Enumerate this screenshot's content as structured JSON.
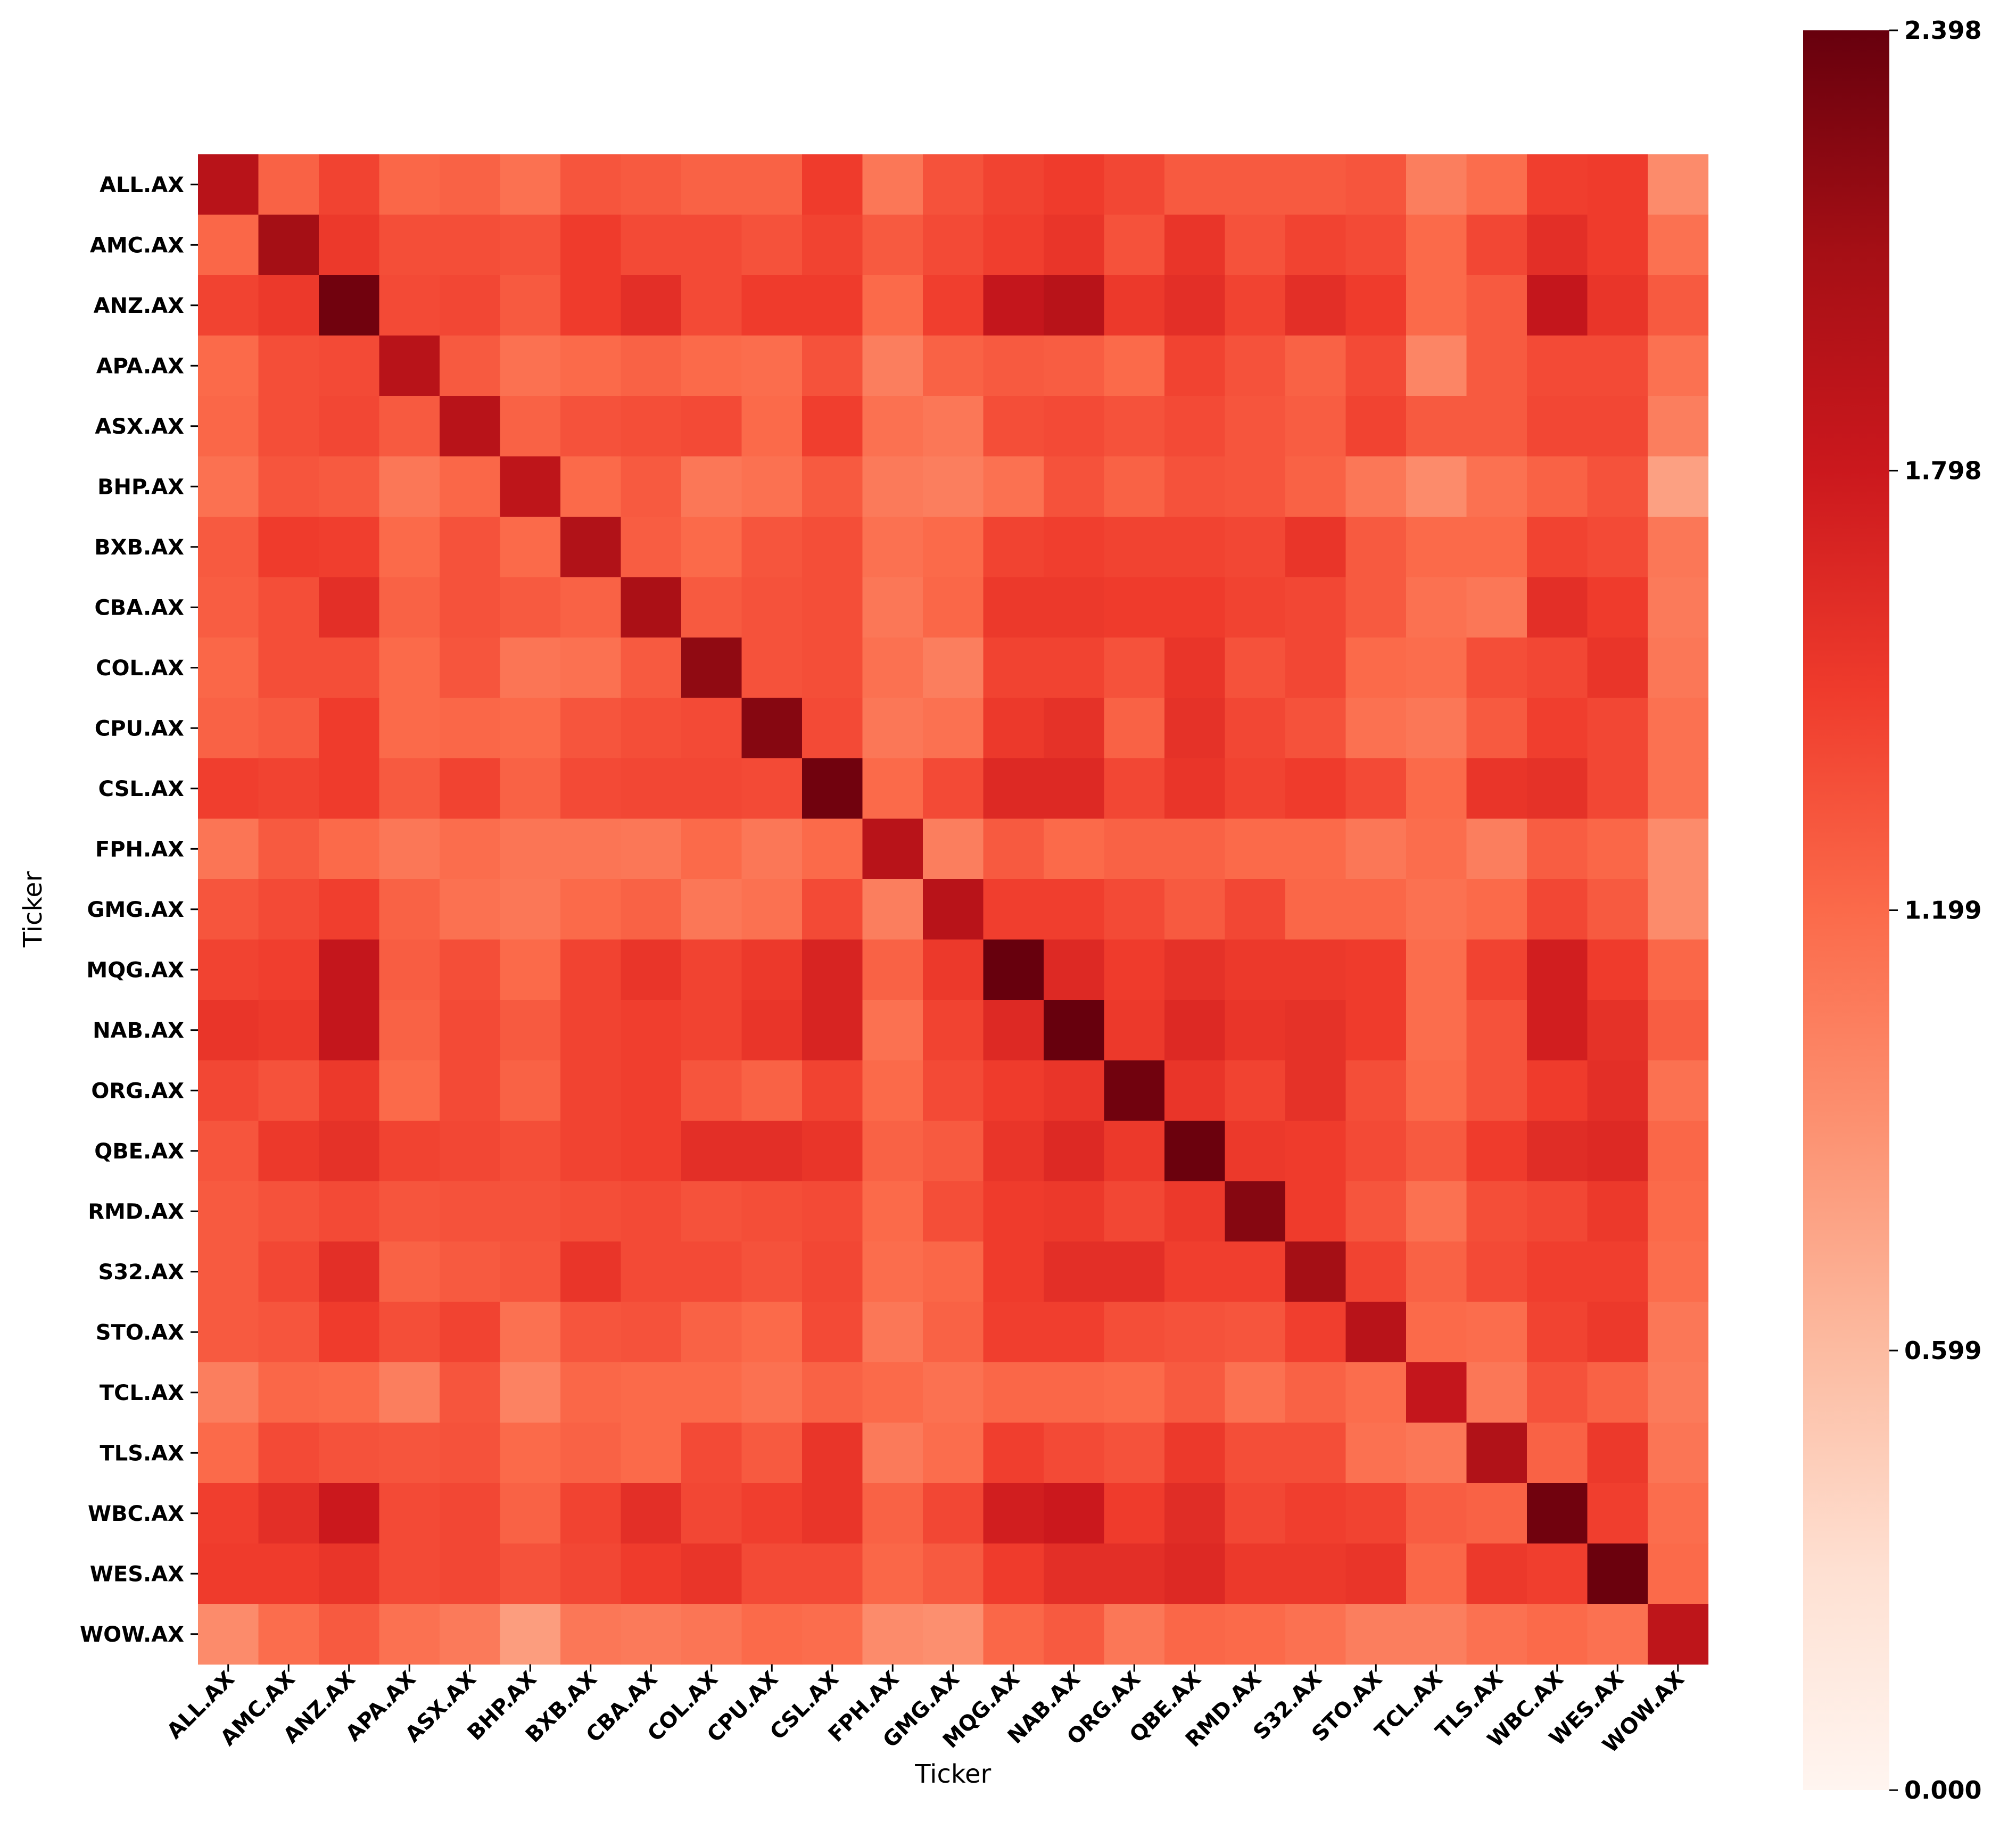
{
  "chart_data": {
    "type": "heatmap",
    "title": "",
    "xlabel": "Ticker",
    "ylabel": "Ticker",
    "tickers": [
      "ALL.AX",
      "AMC.AX",
      "ANZ.AX",
      "APA.AX",
      "ASX.AX",
      "BHP.AX",
      "BXB.AX",
      "CBA.AX",
      "COL.AX",
      "CPU.AX",
      "CSL.AX",
      "FPH.AX",
      "GMG.AX",
      "MQG.AX",
      "NAB.AX",
      "ORG.AX",
      "QBE.AX",
      "RMD.AX",
      "S32.AX",
      "STO.AX",
      "TCL.AX",
      "TLS.AX",
      "WBC.AX",
      "WES.AX",
      "WOW.AX"
    ],
    "values": [
      [
        1.95,
        1.25,
        1.45,
        1.22,
        1.25,
        1.15,
        1.33,
        1.3,
        1.25,
        1.25,
        1.5,
        1.1,
        1.35,
        1.45,
        1.5,
        1.42,
        1.3,
        1.3,
        1.3,
        1.33,
        1.05,
        1.18,
        1.48,
        1.5,
        0.95
      ],
      [
        1.22,
        2.1,
        1.52,
        1.38,
        1.38,
        1.35,
        1.5,
        1.4,
        1.4,
        1.35,
        1.45,
        1.3,
        1.4,
        1.48,
        1.55,
        1.35,
        1.55,
        1.35,
        1.45,
        1.4,
        1.2,
        1.42,
        1.6,
        1.5,
        1.15
      ],
      [
        1.45,
        1.52,
        2.35,
        1.4,
        1.42,
        1.3,
        1.5,
        1.6,
        1.4,
        1.5,
        1.5,
        1.2,
        1.48,
        1.85,
        1.95,
        1.52,
        1.6,
        1.45,
        1.6,
        1.5,
        1.2,
        1.3,
        1.85,
        1.55,
        1.3
      ],
      [
        1.2,
        1.38,
        1.4,
        1.95,
        1.3,
        1.15,
        1.2,
        1.25,
        1.2,
        1.18,
        1.35,
        1.05,
        1.25,
        1.3,
        1.28,
        1.2,
        1.45,
        1.35,
        1.25,
        1.4,
        1.0,
        1.3,
        1.4,
        1.4,
        1.15
      ],
      [
        1.22,
        1.38,
        1.42,
        1.3,
        1.95,
        1.25,
        1.35,
        1.38,
        1.4,
        1.2,
        1.48,
        1.15,
        1.1,
        1.38,
        1.4,
        1.35,
        1.4,
        1.33,
        1.28,
        1.45,
        1.3,
        1.3,
        1.42,
        1.42,
        1.05
      ],
      [
        1.15,
        1.33,
        1.3,
        1.1,
        1.22,
        1.9,
        1.2,
        1.3,
        1.1,
        1.15,
        1.3,
        1.08,
        1.05,
        1.15,
        1.35,
        1.25,
        1.35,
        1.33,
        1.25,
        1.1,
        0.95,
        1.15,
        1.25,
        1.35,
        0.8
      ],
      [
        1.3,
        1.5,
        1.48,
        1.2,
        1.35,
        1.2,
        2.0,
        1.28,
        1.2,
        1.33,
        1.38,
        1.15,
        1.2,
        1.45,
        1.48,
        1.45,
        1.45,
        1.42,
        1.55,
        1.3,
        1.2,
        1.2,
        1.45,
        1.4,
        1.1
      ],
      [
        1.28,
        1.38,
        1.6,
        1.25,
        1.35,
        1.3,
        1.25,
        2.05,
        1.3,
        1.35,
        1.38,
        1.1,
        1.22,
        1.52,
        1.52,
        1.5,
        1.5,
        1.45,
        1.42,
        1.3,
        1.15,
        1.1,
        1.6,
        1.5,
        1.08
      ],
      [
        1.22,
        1.38,
        1.38,
        1.2,
        1.33,
        1.12,
        1.15,
        1.3,
        2.2,
        1.35,
        1.38,
        1.15,
        1.05,
        1.45,
        1.45,
        1.35,
        1.55,
        1.35,
        1.42,
        1.2,
        1.18,
        1.38,
        1.42,
        1.55,
        1.1
      ],
      [
        1.25,
        1.3,
        1.5,
        1.2,
        1.22,
        1.2,
        1.33,
        1.38,
        1.4,
        2.25,
        1.4,
        1.1,
        1.15,
        1.52,
        1.58,
        1.25,
        1.58,
        1.42,
        1.35,
        1.15,
        1.1,
        1.3,
        1.48,
        1.42,
        1.15
      ],
      [
        1.48,
        1.45,
        1.5,
        1.3,
        1.45,
        1.25,
        1.4,
        1.42,
        1.42,
        1.4,
        2.35,
        1.2,
        1.4,
        1.65,
        1.65,
        1.42,
        1.55,
        1.45,
        1.5,
        1.4,
        1.2,
        1.55,
        1.58,
        1.42,
        1.15
      ],
      [
        1.12,
        1.3,
        1.2,
        1.1,
        1.18,
        1.12,
        1.12,
        1.1,
        1.2,
        1.1,
        1.2,
        1.95,
        1.05,
        1.3,
        1.2,
        1.25,
        1.25,
        1.2,
        1.2,
        1.1,
        1.18,
        1.05,
        1.28,
        1.22,
        0.95
      ],
      [
        1.33,
        1.4,
        1.48,
        1.25,
        1.15,
        1.1,
        1.2,
        1.25,
        1.1,
        1.15,
        1.4,
        1.05,
        1.95,
        1.48,
        1.48,
        1.4,
        1.3,
        1.42,
        1.22,
        1.22,
        1.15,
        1.2,
        1.42,
        1.3,
        0.95
      ],
      [
        1.45,
        1.48,
        1.85,
        1.28,
        1.38,
        1.2,
        1.45,
        1.55,
        1.45,
        1.52,
        1.7,
        1.25,
        1.52,
        2.4,
        1.65,
        1.5,
        1.58,
        1.52,
        1.52,
        1.5,
        1.18,
        1.45,
        1.75,
        1.5,
        1.22
      ],
      [
        1.55,
        1.52,
        1.85,
        1.25,
        1.4,
        1.3,
        1.45,
        1.48,
        1.45,
        1.55,
        1.7,
        1.15,
        1.45,
        1.65,
        2.4,
        1.52,
        1.65,
        1.55,
        1.58,
        1.5,
        1.18,
        1.35,
        1.75,
        1.58,
        1.28
      ],
      [
        1.42,
        1.35,
        1.52,
        1.2,
        1.4,
        1.25,
        1.45,
        1.48,
        1.33,
        1.25,
        1.45,
        1.2,
        1.4,
        1.5,
        1.55,
        2.35,
        1.55,
        1.45,
        1.58,
        1.38,
        1.2,
        1.35,
        1.5,
        1.6,
        1.15
      ],
      [
        1.33,
        1.52,
        1.58,
        1.45,
        1.42,
        1.38,
        1.45,
        1.48,
        1.6,
        1.6,
        1.55,
        1.25,
        1.3,
        1.55,
        1.65,
        1.52,
        2.38,
        1.52,
        1.5,
        1.4,
        1.3,
        1.5,
        1.62,
        1.65,
        1.22
      ],
      [
        1.3,
        1.35,
        1.4,
        1.33,
        1.35,
        1.35,
        1.38,
        1.4,
        1.35,
        1.38,
        1.4,
        1.2,
        1.38,
        1.5,
        1.52,
        1.42,
        1.52,
        2.25,
        1.5,
        1.33,
        1.15,
        1.38,
        1.42,
        1.52,
        1.2
      ],
      [
        1.3,
        1.42,
        1.6,
        1.25,
        1.3,
        1.33,
        1.55,
        1.4,
        1.4,
        1.35,
        1.42,
        1.18,
        1.22,
        1.5,
        1.6,
        1.6,
        1.48,
        1.48,
        2.1,
        1.45,
        1.25,
        1.4,
        1.48,
        1.48,
        1.18
      ],
      [
        1.3,
        1.33,
        1.5,
        1.38,
        1.45,
        1.15,
        1.33,
        1.35,
        1.25,
        1.2,
        1.4,
        1.1,
        1.25,
        1.48,
        1.48,
        1.38,
        1.35,
        1.33,
        1.48,
        1.95,
        1.2,
        1.18,
        1.45,
        1.52,
        1.1
      ],
      [
        1.05,
        1.22,
        1.2,
        1.05,
        1.33,
        1.02,
        1.22,
        1.2,
        1.2,
        1.15,
        1.25,
        1.2,
        1.15,
        1.22,
        1.22,
        1.2,
        1.3,
        1.15,
        1.25,
        1.18,
        1.85,
        1.1,
        1.35,
        1.25,
        1.08
      ],
      [
        1.2,
        1.4,
        1.35,
        1.33,
        1.35,
        1.2,
        1.25,
        1.2,
        1.4,
        1.3,
        1.55,
        1.08,
        1.18,
        1.48,
        1.4,
        1.35,
        1.52,
        1.38,
        1.38,
        1.15,
        1.1,
        2.0,
        1.25,
        1.52,
        1.12
      ],
      [
        1.48,
        1.6,
        1.8,
        1.4,
        1.42,
        1.25,
        1.45,
        1.6,
        1.42,
        1.48,
        1.55,
        1.25,
        1.42,
        1.75,
        1.8,
        1.5,
        1.62,
        1.42,
        1.48,
        1.45,
        1.28,
        1.25,
        2.35,
        1.48,
        1.18
      ],
      [
        1.5,
        1.5,
        1.55,
        1.4,
        1.42,
        1.35,
        1.42,
        1.5,
        1.55,
        1.4,
        1.4,
        1.22,
        1.3,
        1.5,
        1.6,
        1.6,
        1.65,
        1.52,
        1.52,
        1.55,
        1.22,
        1.52,
        1.48,
        2.38,
        1.2
      ],
      [
        0.95,
        1.18,
        1.3,
        1.15,
        1.08,
        0.82,
        1.1,
        1.08,
        1.12,
        1.2,
        1.18,
        0.95,
        0.92,
        1.22,
        1.3,
        1.1,
        1.22,
        1.2,
        1.15,
        1.05,
        1.05,
        1.15,
        1.2,
        1.15,
        1.9
      ]
    ],
    "colorbar": {
      "min": 0.0,
      "max": 2.398,
      "ticks": [
        "0.000",
        "0.599",
        "1.199",
        "1.798",
        "2.398"
      ],
      "tick_values": [
        0.0,
        0.599,
        1.199,
        1.798,
        2.398
      ]
    },
    "colormap": "Reds",
    "colormap_stops": [
      "#fff5f0",
      "#fee0d2",
      "#fcbba1",
      "#fc9272",
      "#fb6a4a",
      "#ef3b2c",
      "#cb181d",
      "#a50f15",
      "#67000d"
    ]
  }
}
